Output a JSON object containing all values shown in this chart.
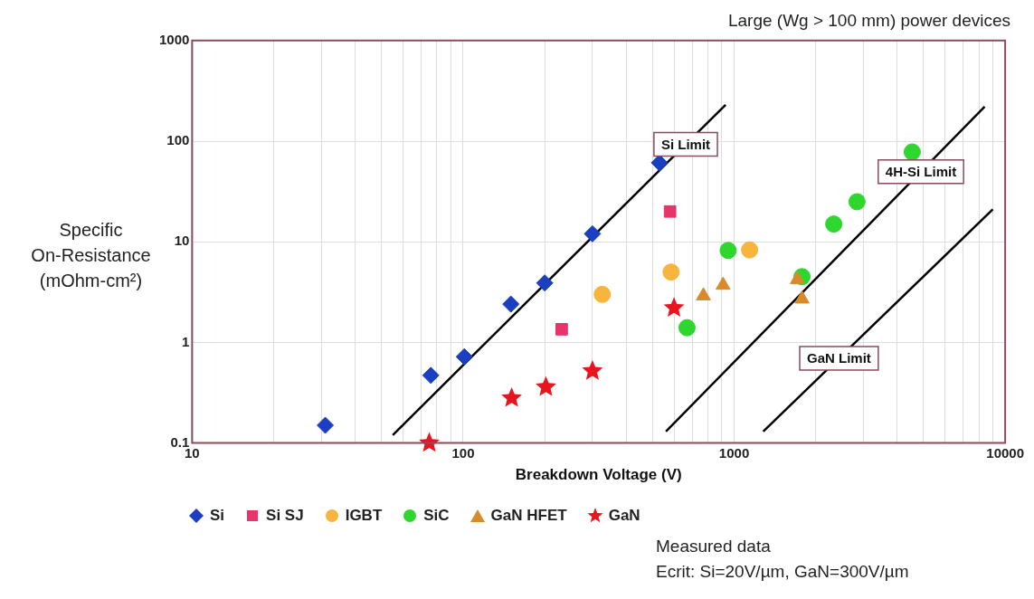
{
  "chart_data": {
    "type": "scatter",
    "title": "Large (Wg > 100 mm) power devices",
    "xlabel": "Breakdown Voltage (V)",
    "ylabel": "Specific On-Resistance (mOhm-cm²)",
    "log": "xy",
    "grid": true,
    "legend": "bottom",
    "xlim": [
      10,
      10000
    ],
    "ylim": [
      0.1,
      1000
    ],
    "xticks": [
      10,
      {
        "value": 20,
        "label": null
      },
      {
        "value": 30,
        "label": null
      },
      {
        "value": 40,
        "label": null
      },
      {
        "value": 50,
        "label": null
      },
      {
        "value": 60,
        "label": null
      },
      {
        "value": 70,
        "label": null
      },
      {
        "value": 80,
        "label": null
      },
      {
        "value": 90,
        "label": null
      },
      100,
      {
        "value": 200,
        "label": null
      },
      {
        "value": 300,
        "label": null
      },
      {
        "value": 400,
        "label": null
      },
      {
        "value": 500,
        "label": null
      },
      {
        "value": 600,
        "label": null
      },
      {
        "value": 700,
        "label": null
      },
      {
        "value": 800,
        "label": null
      },
      {
        "value": 900,
        "label": null
      },
      1000,
      {
        "value": 2000,
        "label": null
      },
      {
        "value": 3000,
        "label": null
      },
      {
        "value": 4000,
        "label": null
      },
      {
        "value": 5000,
        "label": null
      },
      {
        "value": 6000,
        "label": null
      },
      {
        "value": 7000,
        "label": null
      },
      {
        "value": 8000,
        "label": null
      },
      {
        "value": 9000,
        "label": null
      },
      10000
    ],
    "yticks": [
      0.1,
      1,
      10,
      100,
      1000
    ],
    "series": [
      {
        "name": "Si Limit",
        "type": "line",
        "color": "#000000",
        "marker": "none",
        "x": [
          55,
          930
        ],
        "values": [
          0.12,
          230
        ]
      },
      {
        "name": "4H-Si Limit",
        "type": "line",
        "color": "#000000",
        "marker": "none",
        "x": [
          560,
          8400
        ],
        "values": [
          0.13,
          220
        ]
      },
      {
        "name": "GaN Limit",
        "type": "line",
        "color": "#000000",
        "marker": "none",
        "x": [
          1280,
          9000
        ],
        "values": [
          0.13,
          21
        ]
      },
      {
        "name": "Si",
        "color": "#1a3fc0",
        "marker": "diamond",
        "x": [
          31,
          76,
          101,
          150,
          200,
          300,
          530
        ],
        "values": [
          0.15,
          0.47,
          0.72,
          2.4,
          3.9,
          12,
          61
        ]
      },
      {
        "name": "Si SJ",
        "color": "#e8336b",
        "marker": "square",
        "x": [
          231,
          580
        ],
        "values": [
          1.35,
          20
        ]
      },
      {
        "name": "IGBT",
        "color": "#f7b53e",
        "marker": "circle",
        "x": [
          326,
          585,
          1140
        ],
        "values": [
          3,
          5,
          8.3
        ]
      },
      {
        "name": "SiC",
        "color": "#2ed62e",
        "marker": "circle",
        "x": [
          670,
          950,
          1780,
          2330,
          2840,
          4540
        ],
        "values": [
          1.4,
          8.2,
          4.5,
          15,
          25,
          78
        ]
      },
      {
        "name": "GaN HFET",
        "color": "#d98b2b",
        "marker": "triangle",
        "x": [
          770,
          910,
          1710,
          1780
        ],
        "values": [
          2.9,
          3.7,
          4.2,
          2.7
        ]
      },
      {
        "name": "GaN",
        "color": "#e8141e",
        "marker": "star",
        "x": [
          75,
          151,
          202,
          300,
          600
        ],
        "values": [
          0.1,
          0.28,
          0.36,
          0.52,
          2.2
        ]
      }
    ],
    "annotations": [
      "Measured data",
      "Ecrit: Si=20V/µm, GaN=300V/µm"
    ]
  }
}
